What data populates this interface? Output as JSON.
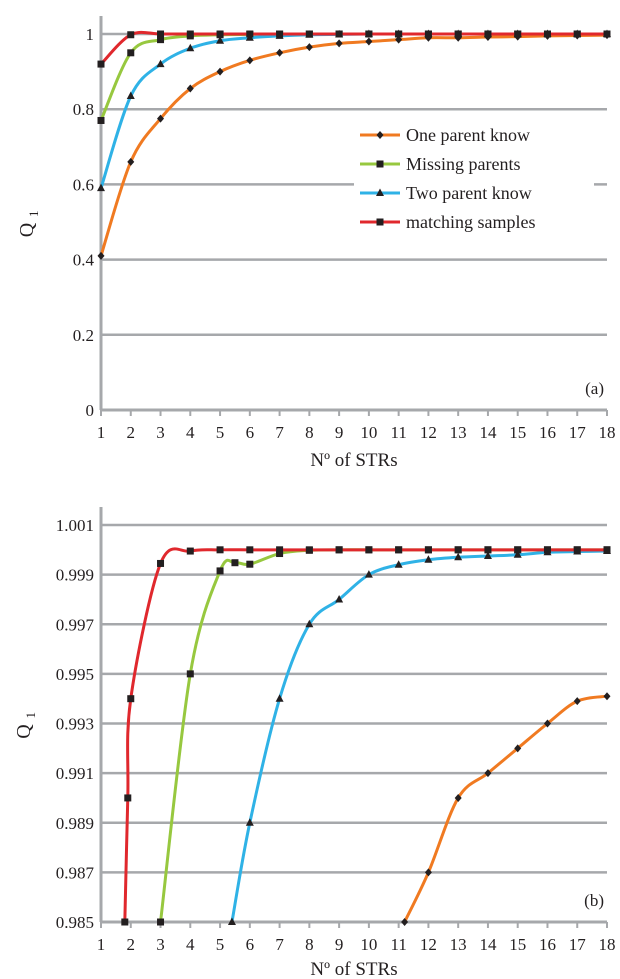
{
  "chart_data": [
    {
      "type": "line",
      "panel_label": "(a)",
      "xlabel": "Nº of STRs",
      "ylabel": "Q",
      "ylabel_sub": "1",
      "x": [
        1,
        2,
        3,
        4,
        5,
        6,
        7,
        8,
        9,
        10,
        11,
        12,
        13,
        14,
        15,
        16,
        17,
        18
      ],
      "xlim": [
        1,
        18
      ],
      "ylim": [
        0,
        1
      ],
      "yticks": [
        0,
        0.2,
        0.4,
        0.6,
        0.8,
        1
      ],
      "ytick_labels": [
        "0",
        "0.2",
        "0.4",
        "0.6",
        "0.8",
        "1"
      ],
      "xtick_labels": [
        "1",
        "2",
        "3",
        "4",
        "5",
        "6",
        "7",
        "8",
        "9",
        "10",
        "11",
        "12",
        "13",
        "14",
        "15",
        "16",
        "17",
        "18"
      ],
      "grid": true,
      "legend_position": "center-right",
      "series": [
        {
          "name": "One parent know",
          "color": "#f07a21",
          "marker": "diamond",
          "values": [
            0.41,
            0.66,
            0.775,
            0.855,
            0.9,
            0.93,
            0.95,
            0.965,
            0.975,
            0.98,
            0.985,
            0.99,
            0.99,
            0.992,
            0.993,
            0.995,
            0.996,
            0.997
          ]
        },
        {
          "name": "Missing parents",
          "color": "#97c83f",
          "marker": "square",
          "values": [
            0.77,
            0.95,
            0.985,
            0.995,
            0.998,
            0.999,
            1,
            1,
            1,
            1,
            1,
            1,
            1,
            1,
            1,
            1,
            1,
            1
          ]
        },
        {
          "name": "Two parent know",
          "color": "#2fb2e6",
          "marker": "triangle",
          "values": [
            0.59,
            0.835,
            0.92,
            0.962,
            0.982,
            0.99,
            0.995,
            0.998,
            0.999,
            1,
            1,
            1,
            1,
            1,
            1,
            1,
            1,
            1
          ]
        },
        {
          "name": "matching samples",
          "color": "#e0282d",
          "marker": "square",
          "values": [
            0.92,
            0.998,
            1,
            1,
            1,
            1,
            1,
            1,
            1,
            1,
            1,
            1,
            1,
            1,
            1,
            1,
            1,
            1
          ]
        }
      ]
    },
    {
      "type": "line",
      "panel_label": "(b)",
      "xlabel": "Nº of STRs",
      "ylabel": "Q",
      "ylabel_sub": "1",
      "x": [
        1,
        2,
        3,
        4,
        5,
        6,
        7,
        8,
        9,
        10,
        11,
        12,
        13,
        14,
        15,
        16,
        17,
        18
      ],
      "xlim": [
        1,
        18
      ],
      "ylim": [
        0.985,
        1.001
      ],
      "yticks": [
        0.985,
        0.987,
        0.989,
        0.991,
        0.993,
        0.995,
        0.997,
        0.999,
        1.001
      ],
      "ytick_labels": [
        "0.985",
        "0.987",
        "0.989",
        "0.991",
        "0.993",
        "0.995",
        "0.997",
        "0.999",
        "1.001"
      ],
      "xtick_labels": [
        "1",
        "2",
        "3",
        "4",
        "5",
        "6",
        "7",
        "8",
        "9",
        "10",
        "11",
        "12",
        "13",
        "14",
        "15",
        "16",
        "17",
        "18"
      ],
      "grid": true,
      "series": [
        {
          "name": "One parent know",
          "color": "#f07a21",
          "marker": "diamond",
          "points": [
            [
              11.2,
              0.985
            ],
            [
              12,
              0.987
            ],
            [
              13,
              0.99
            ],
            [
              14,
              0.991
            ],
            [
              15,
              0.992
            ],
            [
              16,
              0.993
            ],
            [
              17,
              0.9939
            ],
            [
              18,
              0.9941
            ]
          ]
        },
        {
          "name": "Missing parents",
          "color": "#97c83f",
          "marker": "square",
          "points": [
            [
              3.0,
              0.985
            ],
            [
              4,
              0.995
            ],
            [
              5,
              0.99915
            ],
            [
              5.5,
              0.99948
            ],
            [
              6,
              0.99942
            ],
            [
              7,
              0.99985
            ],
            [
              8,
              0.99998
            ],
            [
              9,
              1
            ],
            [
              10,
              1
            ],
            [
              11,
              1
            ],
            [
              12,
              1
            ],
            [
              13,
              1
            ],
            [
              14,
              1
            ],
            [
              15,
              1
            ],
            [
              16,
              1
            ],
            [
              17,
              1
            ],
            [
              18,
              1
            ]
          ]
        },
        {
          "name": "Two parent know",
          "color": "#2fb2e6",
          "marker": "triangle",
          "points": [
            [
              5.4,
              0.985
            ],
            [
              6,
              0.989
            ],
            [
              7,
              0.994
            ],
            [
              8,
              0.997
            ],
            [
              9,
              0.998
            ],
            [
              10,
              0.999
            ],
            [
              11,
              0.9994
            ],
            [
              12,
              0.9996
            ],
            [
              13,
              0.9997
            ],
            [
              14,
              0.99975
            ],
            [
              15,
              0.9998
            ],
            [
              16,
              0.9999
            ],
            [
              17,
              0.99993
            ],
            [
              18,
              0.99995
            ]
          ]
        },
        {
          "name": "matching samples",
          "color": "#e0282d",
          "marker": "square",
          "points": [
            [
              1.8,
              0.985
            ],
            [
              1.9,
              0.99
            ],
            [
              2,
              0.994
            ],
            [
              3,
              0.99945
            ],
            [
              4,
              0.99995
            ],
            [
              5,
              1
            ],
            [
              6,
              1
            ],
            [
              7,
              1
            ],
            [
              8,
              1
            ],
            [
              9,
              1
            ],
            [
              10,
              1
            ],
            [
              11,
              1
            ],
            [
              12,
              1
            ],
            [
              13,
              1
            ],
            [
              14,
              1
            ],
            [
              15,
              1
            ],
            [
              16,
              1
            ],
            [
              17,
              1
            ],
            [
              18,
              1
            ]
          ]
        }
      ]
    }
  ]
}
